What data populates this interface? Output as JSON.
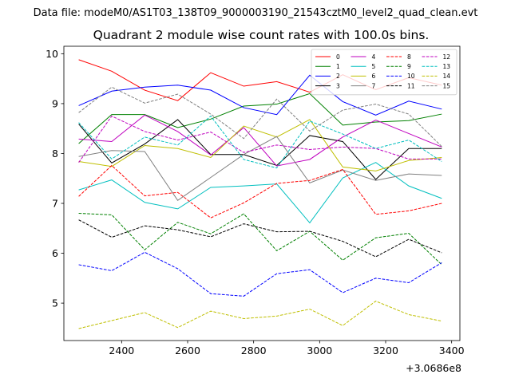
{
  "figure": {
    "suptitle": "Data file: modeM0/AS1T03_138T09_9000003190_21543cztM0_level2_quad_clean.evt"
  },
  "chart_data": {
    "type": "line",
    "title": "Quadrant 2 module wise count rates with 100.0s bins.",
    "xlabel": "",
    "ylabel": "",
    "x_offset_label": "+3.0686e8",
    "xlim": [
      2225,
      3425
    ],
    "ylim": [
      4.25,
      10.15
    ],
    "xticks": [
      2400,
      2600,
      2800,
      3000,
      3200,
      3400
    ],
    "xtick_labels": [
      "2400",
      "2600",
      "2800",
      "3000",
      "3200",
      "3400"
    ],
    "yticks": [
      5,
      6,
      7,
      8,
      9,
      10
    ],
    "ytick_labels": [
      "5",
      "6",
      "7",
      "8",
      "9",
      "10"
    ],
    "legend_position": "top-right",
    "legend_columns": 4,
    "x": [
      2270,
      2370,
      2470,
      2570,
      2670,
      2770,
      2870,
      2970,
      3070,
      3170,
      3270,
      3370
    ],
    "series": [
      {
        "name": "0",
        "color": "#ff0000",
        "style": "solid",
        "values": [
          9.88,
          9.65,
          9.27,
          9.06,
          9.62,
          9.35,
          9.44,
          9.23,
          9.58,
          9.28,
          9.52,
          9.37
        ]
      },
      {
        "name": "1",
        "color": "#008000",
        "style": "solid",
        "values": [
          8.2,
          8.78,
          8.78,
          8.52,
          8.69,
          8.95,
          8.99,
          9.2,
          8.57,
          8.63,
          8.66,
          8.79
        ]
      },
      {
        "name": "2",
        "color": "#0000ff",
        "style": "solid",
        "values": [
          8.96,
          9.25,
          9.33,
          9.37,
          9.27,
          8.92,
          8.78,
          9.57,
          9.04,
          8.77,
          9.05,
          8.89
        ]
      },
      {
        "name": "3",
        "color": "#000000",
        "style": "solid",
        "values": [
          8.59,
          7.81,
          8.19,
          8.68,
          7.98,
          7.98,
          7.76,
          8.36,
          8.24,
          7.48,
          8.1,
          8.1
        ]
      },
      {
        "name": "4",
        "color": "#bf00bf",
        "style": "solid",
        "values": [
          8.29,
          8.24,
          8.77,
          8.44,
          7.97,
          8.52,
          7.75,
          7.88,
          8.33,
          8.67,
          8.4,
          8.13
        ]
      },
      {
        "name": "5",
        "color": "#00bfbf",
        "style": "solid",
        "values": [
          7.27,
          7.47,
          7.02,
          6.89,
          7.32,
          7.35,
          7.39,
          6.61,
          7.51,
          7.82,
          7.35,
          7.1
        ]
      },
      {
        "name": "6",
        "color": "#bfbf00",
        "style": "solid",
        "values": [
          7.84,
          7.74,
          8.16,
          8.1,
          7.92,
          8.55,
          8.33,
          8.68,
          7.73,
          7.65,
          7.86,
          7.92
        ]
      },
      {
        "name": "7",
        "color": "#808080",
        "style": "solid",
        "values": [
          7.94,
          8.06,
          8.04,
          7.06,
          7.52,
          7.98,
          8.34,
          7.41,
          7.67,
          7.46,
          7.59,
          7.56
        ]
      },
      {
        "name": "8",
        "color": "#ff0000",
        "style": "dashed",
        "values": [
          7.14,
          7.76,
          7.15,
          7.22,
          6.71,
          7.01,
          7.4,
          7.46,
          7.68,
          6.78,
          6.85,
          7.0
        ]
      },
      {
        "name": "9",
        "color": "#008000",
        "style": "dashed",
        "values": [
          6.8,
          6.77,
          6.07,
          6.62,
          6.39,
          6.79,
          6.05,
          6.44,
          5.86,
          6.31,
          6.4,
          5.77
        ]
      },
      {
        "name": "10",
        "color": "#0000ff",
        "style": "dashed",
        "values": [
          5.77,
          5.65,
          6.02,
          5.69,
          5.19,
          5.14,
          5.59,
          5.67,
          5.21,
          5.5,
          5.41,
          5.81
        ]
      },
      {
        "name": "11",
        "color": "#000000",
        "style": "dashed",
        "values": [
          6.67,
          6.32,
          6.55,
          6.47,
          6.33,
          6.59,
          6.43,
          6.44,
          6.24,
          5.93,
          6.28,
          6.01
        ]
      },
      {
        "name": "12",
        "color": "#bf00bf",
        "style": "dashed",
        "values": [
          7.82,
          8.75,
          8.44,
          8.27,
          8.43,
          8.02,
          8.17,
          8.08,
          8.13,
          8.1,
          7.89,
          7.89
        ]
      },
      {
        "name": "13",
        "color": "#00bfbf",
        "style": "dashed",
        "values": [
          8.62,
          7.89,
          8.33,
          8.17,
          8.75,
          7.88,
          7.71,
          8.65,
          8.39,
          8.1,
          8.27,
          7.84
        ]
      },
      {
        "name": "14",
        "color": "#bfbf00",
        "style": "dashed",
        "values": [
          4.49,
          4.65,
          4.81,
          4.51,
          4.84,
          4.69,
          4.74,
          4.88,
          4.55,
          5.04,
          4.77,
          4.64
        ]
      },
      {
        "name": "15",
        "color": "#808080",
        "style": "dashed",
        "values": [
          8.82,
          9.33,
          9.01,
          9.19,
          8.79,
          8.3,
          9.09,
          8.45,
          8.87,
          8.99,
          8.79,
          8.14
        ]
      }
    ]
  }
}
